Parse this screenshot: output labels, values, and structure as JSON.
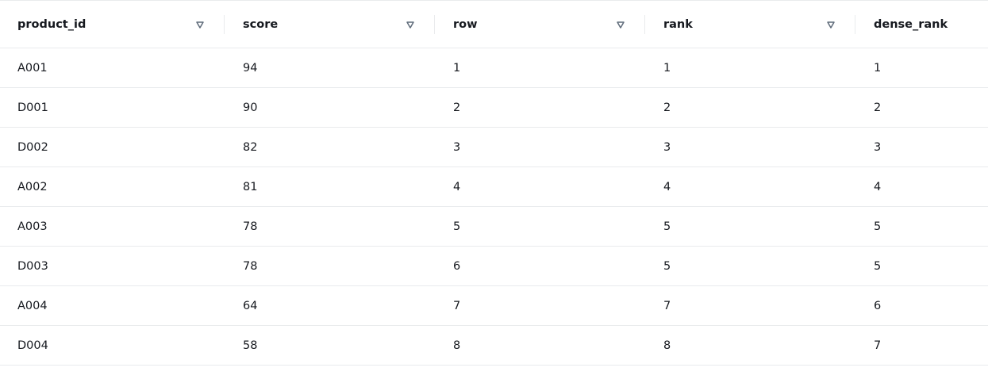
{
  "table": {
    "columns": [
      "product_id",
      "score",
      "row",
      "rank",
      "dense_rank"
    ],
    "rows": [
      [
        "A001",
        94,
        1,
        1,
        1
      ],
      [
        "D001",
        90,
        2,
        2,
        2
      ],
      [
        "D002",
        82,
        3,
        3,
        3
      ],
      [
        "A002",
        81,
        4,
        4,
        4
      ],
      [
        "A003",
        78,
        5,
        5,
        5
      ],
      [
        "D003",
        78,
        6,
        5,
        5
      ],
      [
        "A004",
        64,
        7,
        7,
        6
      ],
      [
        "D004",
        58,
        8,
        8,
        7
      ]
    ]
  }
}
